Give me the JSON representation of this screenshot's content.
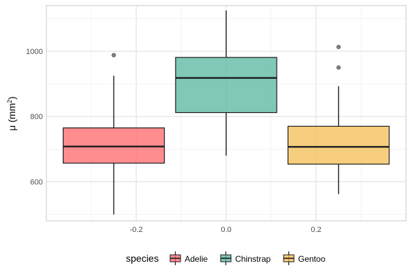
{
  "chart_data": {
    "type": "boxplot",
    "title": "",
    "xlabel": "",
    "ylabel_symbol": "μ",
    "ylabel_unit_base": "mm",
    "ylabel_unit_exponent": "2",
    "xlim": [
      -0.4,
      0.4
    ],
    "ylim": [
      480,
      1140
    ],
    "x_ticks": [
      -0.2,
      0.0,
      0.2
    ],
    "x_tick_labels": [
      "-0.2",
      "0.0",
      "0.2"
    ],
    "y_ticks": [
      600,
      800,
      1000
    ],
    "y_tick_labels": [
      "600",
      "800",
      "1000"
    ],
    "grid": true,
    "legend": {
      "title": "species",
      "position": "bottom",
      "entries": [
        "Adelie",
        "Chinstrap",
        "Gentoo"
      ]
    },
    "series": [
      {
        "name": "Adelie",
        "color": "#FF6B6F",
        "x_center": -0.25,
        "box_width": 0.225,
        "whisker_low": 500,
        "q1": 657,
        "median": 708,
        "q3": 765,
        "whisker_high": 925,
        "outliers": [
          988
        ]
      },
      {
        "name": "Chinstrap",
        "color": "#5DB9A3",
        "x_center": 0.0,
        "box_width": 0.225,
        "whisker_low": 680,
        "q1": 812,
        "median": 918,
        "q3": 981,
        "whisker_high": 1125
      },
      {
        "name": "Gentoo",
        "color": "#F5C05A",
        "x_center": 0.25,
        "box_width": 0.225,
        "whisker_low": 562,
        "q1": 654,
        "median": 707,
        "q3": 770,
        "whisker_high": 893,
        "outliers": [
          950,
          1013
        ]
      }
    ]
  }
}
